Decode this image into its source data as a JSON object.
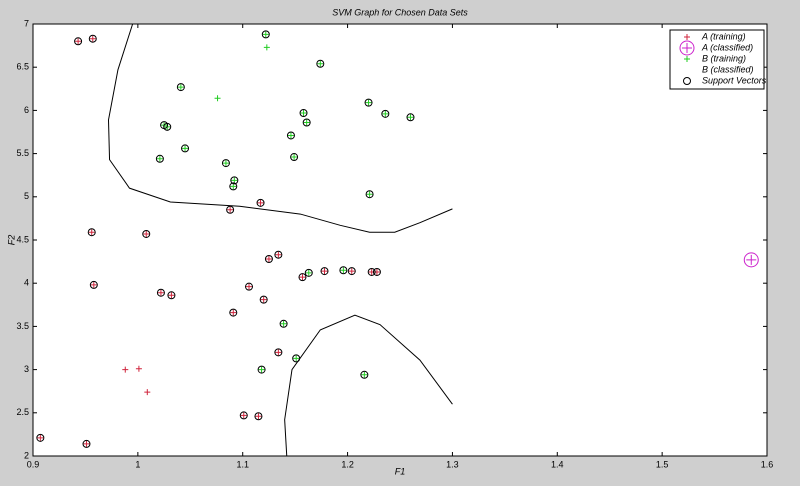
{
  "chart_data": {
    "type": "scatter",
    "title": "SVM Graph for Chosen Data Sets",
    "x_label": "F1",
    "y_label": "F2",
    "xlim": [
      0.9,
      1.6
    ],
    "xticks": [
      0.9,
      1,
      1.1,
      1.2,
      1.3,
      1.4,
      1.5,
      1.6
    ],
    "ylim": [
      2,
      7
    ],
    "yticks": [
      2,
      2.5,
      3,
      3.5,
      4,
      4.5,
      5,
      5.5,
      6,
      6.5,
      7
    ],
    "legend": "upper right",
    "series": [
      {
        "name": "A (training)",
        "color": "#d0243c",
        "marker": "plus",
        "x": [
          0.943,
          0.957,
          0.956,
          0.958,
          1.008,
          1.022,
          1.032,
          1.088,
          1.117,
          1.125,
          1.134,
          1.106,
          1.12,
          1.091,
          1.157,
          1.178,
          1.204,
          1.223,
          1.228,
          1.134,
          1.101,
          1.115,
          0.907,
          0.951,
          0.988,
          1.001,
          1.009
        ],
        "y": [
          6.8,
          6.83,
          4.59,
          3.98,
          4.57,
          3.89,
          3.86,
          4.85,
          4.93,
          4.28,
          4.33,
          3.96,
          3.81,
          3.66,
          4.07,
          4.14,
          4.14,
          4.13,
          4.13,
          3.2,
          2.47,
          2.46,
          2.21,
          2.14,
          3.0,
          3.01,
          2.74
        ]
      },
      {
        "name": "A (classified)",
        "color": "#cc22cc",
        "marker": "circle-plus",
        "x": [
          1.585
        ],
        "y": [
          4.27
        ]
      },
      {
        "name": "B (training)",
        "color": "#22cc22",
        "marker": "plus",
        "x": [
          1.122,
          1.174,
          1.041,
          1.025,
          1.028,
          1.045,
          1.021,
          1.084,
          1.092,
          1.091,
          1.158,
          1.161,
          1.146,
          1.149,
          1.22,
          1.236,
          1.26,
          1.221,
          1.163,
          1.196,
          1.139,
          1.151,
          1.118,
          1.216,
          1.123,
          1.076
        ],
        "y": [
          6.88,
          6.54,
          6.27,
          5.83,
          5.81,
          5.56,
          5.44,
          5.39,
          5.19,
          5.12,
          5.97,
          5.86,
          5.71,
          5.46,
          6.09,
          5.96,
          5.92,
          5.03,
          4.12,
          4.15,
          3.53,
          3.13,
          3.0,
          2.94,
          6.73,
          6.14
        ]
      },
      {
        "name": "B (classified)",
        "color": "#22cc22",
        "marker": "none",
        "x": [],
        "y": []
      },
      {
        "name": "Support Vectors",
        "color": "#000000",
        "marker": "circle",
        "x": [
          0.943,
          0.957,
          0.956,
          0.958,
          1.008,
          1.022,
          1.032,
          1.088,
          1.117,
          1.125,
          1.134,
          1.106,
          1.12,
          1.091,
          1.157,
          1.178,
          1.204,
          1.223,
          1.228,
          1.134,
          1.101,
          1.115,
          0.907,
          0.951,
          1.122,
          1.174,
          1.041,
          1.025,
          1.028,
          1.045,
          1.021,
          1.084,
          1.092,
          1.091,
          1.158,
          1.161,
          1.146,
          1.149,
          1.22,
          1.236,
          1.26,
          1.221,
          1.163,
          1.196,
          1.139,
          1.151,
          1.118,
          1.216
        ],
        "y": [
          6.8,
          6.83,
          4.59,
          3.98,
          4.57,
          3.89,
          3.86,
          4.85,
          4.93,
          4.28,
          4.33,
          3.96,
          3.81,
          3.66,
          4.07,
          4.14,
          4.14,
          4.13,
          4.13,
          3.2,
          2.47,
          2.46,
          2.21,
          2.14,
          6.88,
          6.54,
          6.27,
          5.83,
          5.81,
          5.56,
          5.44,
          5.39,
          5.19,
          5.12,
          5.97,
          5.86,
          5.71,
          5.46,
          6.09,
          5.96,
          5.92,
          5.03,
          4.12,
          4.15,
          3.53,
          3.13,
          3.0,
          2.94
        ]
      }
    ],
    "boundaries": [
      {
        "color": "#000000",
        "x": [
          0.995,
          0.981,
          0.972,
          0.973,
          0.992,
          1.031,
          1.097,
          1.155,
          1.193,
          1.221,
          1.245,
          1.269,
          1.3
        ],
        "y": [
          7.0,
          6.47,
          5.89,
          5.43,
          5.1,
          4.94,
          4.89,
          4.8,
          4.67,
          4.59,
          4.59,
          4.7,
          4.86
        ]
      },
      {
        "color": "#000000",
        "x": [
          1.142,
          1.14,
          1.147,
          1.174,
          1.207,
          1.231,
          1.269,
          1.3
        ],
        "y": [
          2.0,
          2.42,
          3.0,
          3.46,
          3.63,
          3.52,
          3.11,
          2.6
        ]
      }
    ]
  }
}
